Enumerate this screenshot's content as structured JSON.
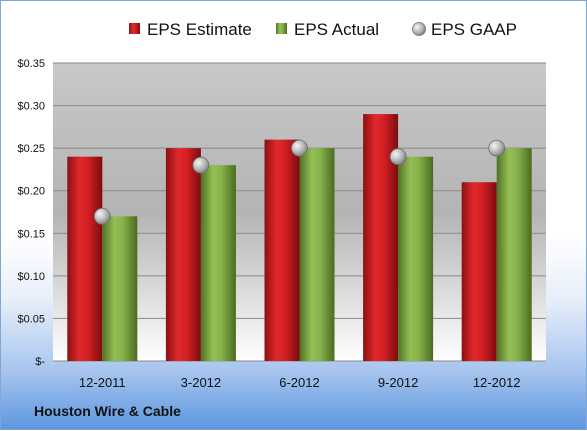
{
  "footer": {
    "company": "Houston Wire & Cable"
  },
  "colors": {
    "estimate": "#c0191c",
    "actual": "#78a03a",
    "gaap": "#b8b8b8",
    "plot_top": "#c8c8c8",
    "plot_bottom": "#ffffff"
  },
  "chart_data": {
    "type": "bar",
    "title": "",
    "xlabel": "",
    "ylabel": "",
    "categories": [
      "12-2011",
      "3-2012",
      "6-2012",
      "9-2012",
      "12-2012"
    ],
    "series": [
      {
        "name": "EPS Estimate",
        "kind": "bar",
        "values": [
          0.24,
          0.25,
          0.26,
          0.29,
          0.21
        ]
      },
      {
        "name": "EPS Actual",
        "kind": "bar",
        "values": [
          0.17,
          0.23,
          0.25,
          0.24,
          0.25
        ]
      },
      {
        "name": "EPS GAAP",
        "kind": "marker",
        "values": [
          0.17,
          0.23,
          0.25,
          0.24,
          0.25
        ]
      }
    ],
    "ylim": [
      0,
      0.35
    ],
    "yticks": [
      0,
      0.05,
      0.1,
      0.15,
      0.2,
      0.25,
      0.3,
      0.35
    ],
    "ytick_labels": [
      "$-",
      "$0.05",
      "$0.10",
      "$0.15",
      "$0.20",
      "$0.25",
      "$0.30",
      "$0.35"
    ],
    "grid": true,
    "legend_position": "top"
  }
}
